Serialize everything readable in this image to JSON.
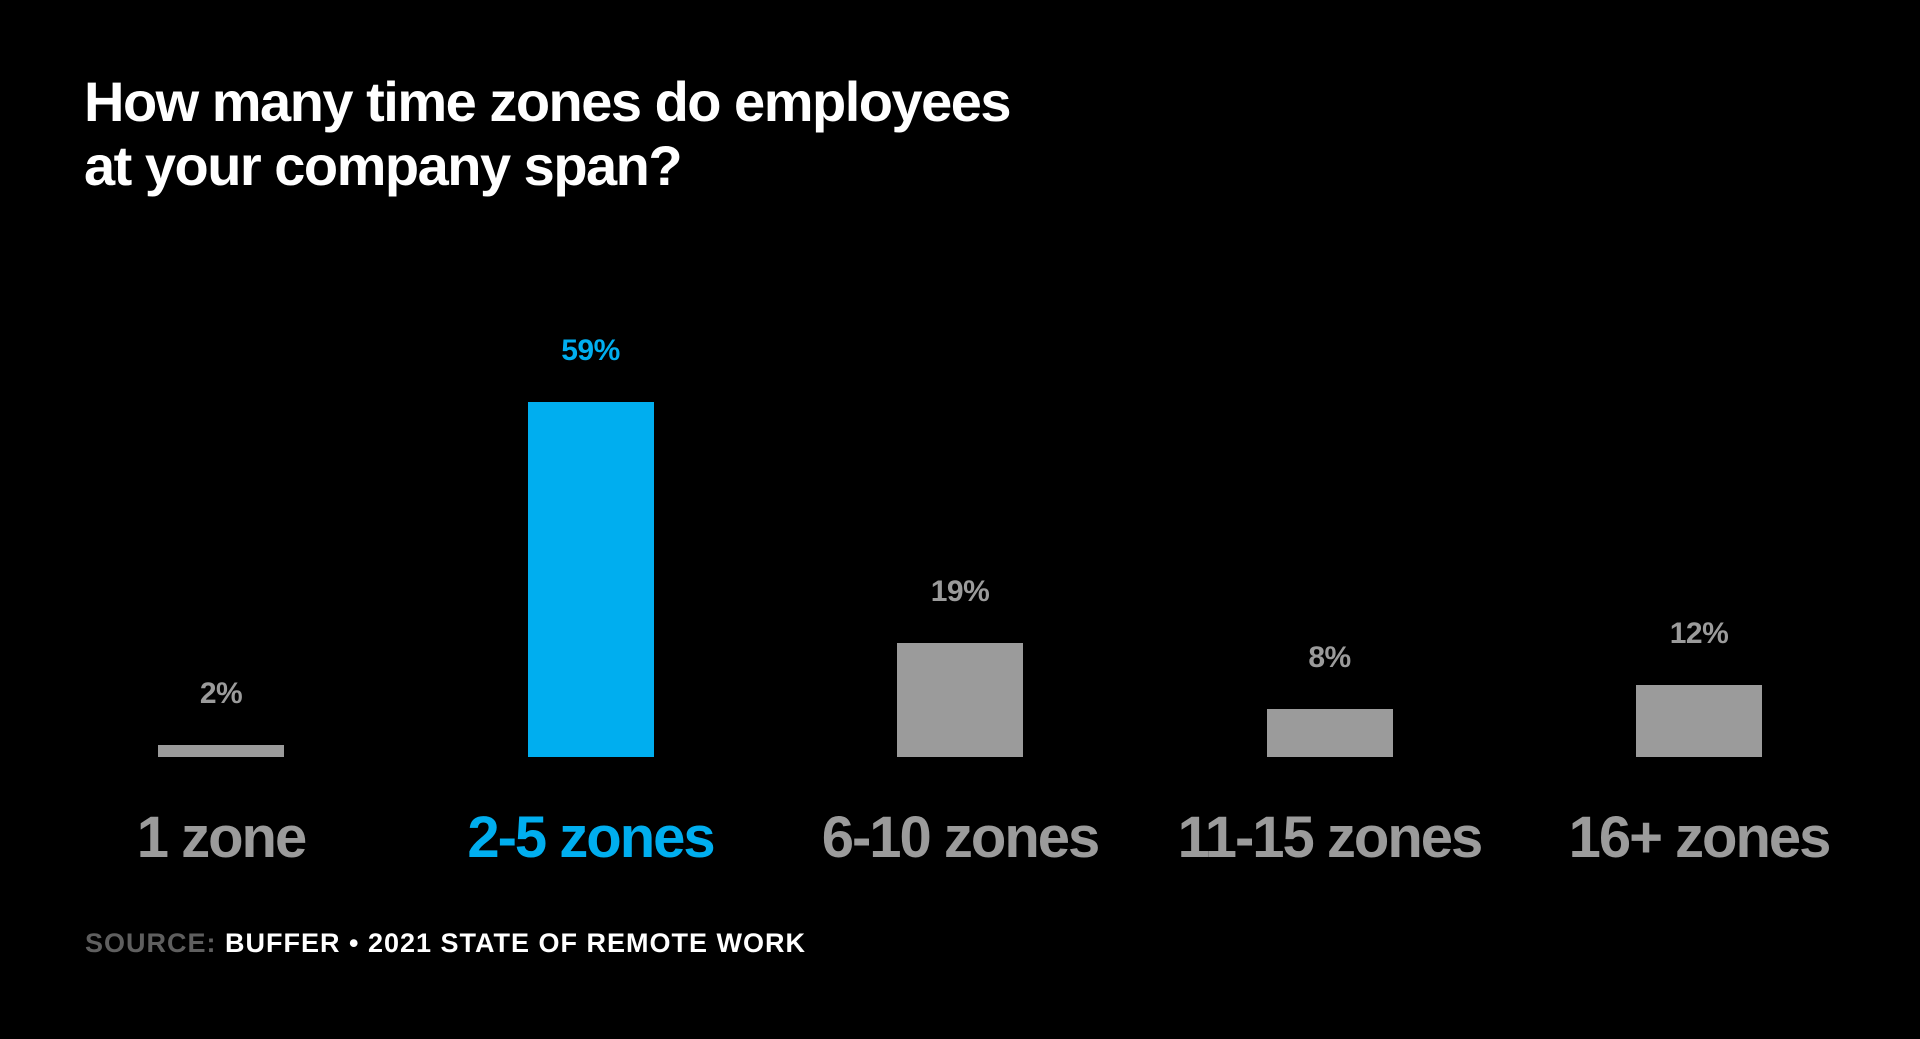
{
  "title": {
    "line1": "How many time zones do employees",
    "line2": "at your company span?"
  },
  "source": {
    "label": "SOURCE:",
    "text": "BUFFER • 2021 STATE OF REMOTE WORK"
  },
  "colors": {
    "background": "#000000",
    "highlight": "#00aeef",
    "default_bar": "#9b9b9b",
    "source_label": "#5f5f5f",
    "title": "#ffffff"
  },
  "chart_data": {
    "type": "bar",
    "title": "How many time zones do employees at your company span?",
    "xlabel": "",
    "ylabel": "",
    "categories": [
      "1 zone",
      "2-5 zones",
      "6-10 zones",
      "11-15 zones",
      "16+ zones"
    ],
    "values": [
      2,
      59,
      19,
      8,
      12
    ],
    "value_labels": [
      "2%",
      "59%",
      "19%",
      "8%",
      "12%"
    ],
    "highlighted_index": 1,
    "unit": "%",
    "ylim": [
      0,
      60
    ],
    "grid": false,
    "legend": null,
    "source": "SOURCE: BUFFER • 2021 STATE OF REMOTE WORK"
  }
}
